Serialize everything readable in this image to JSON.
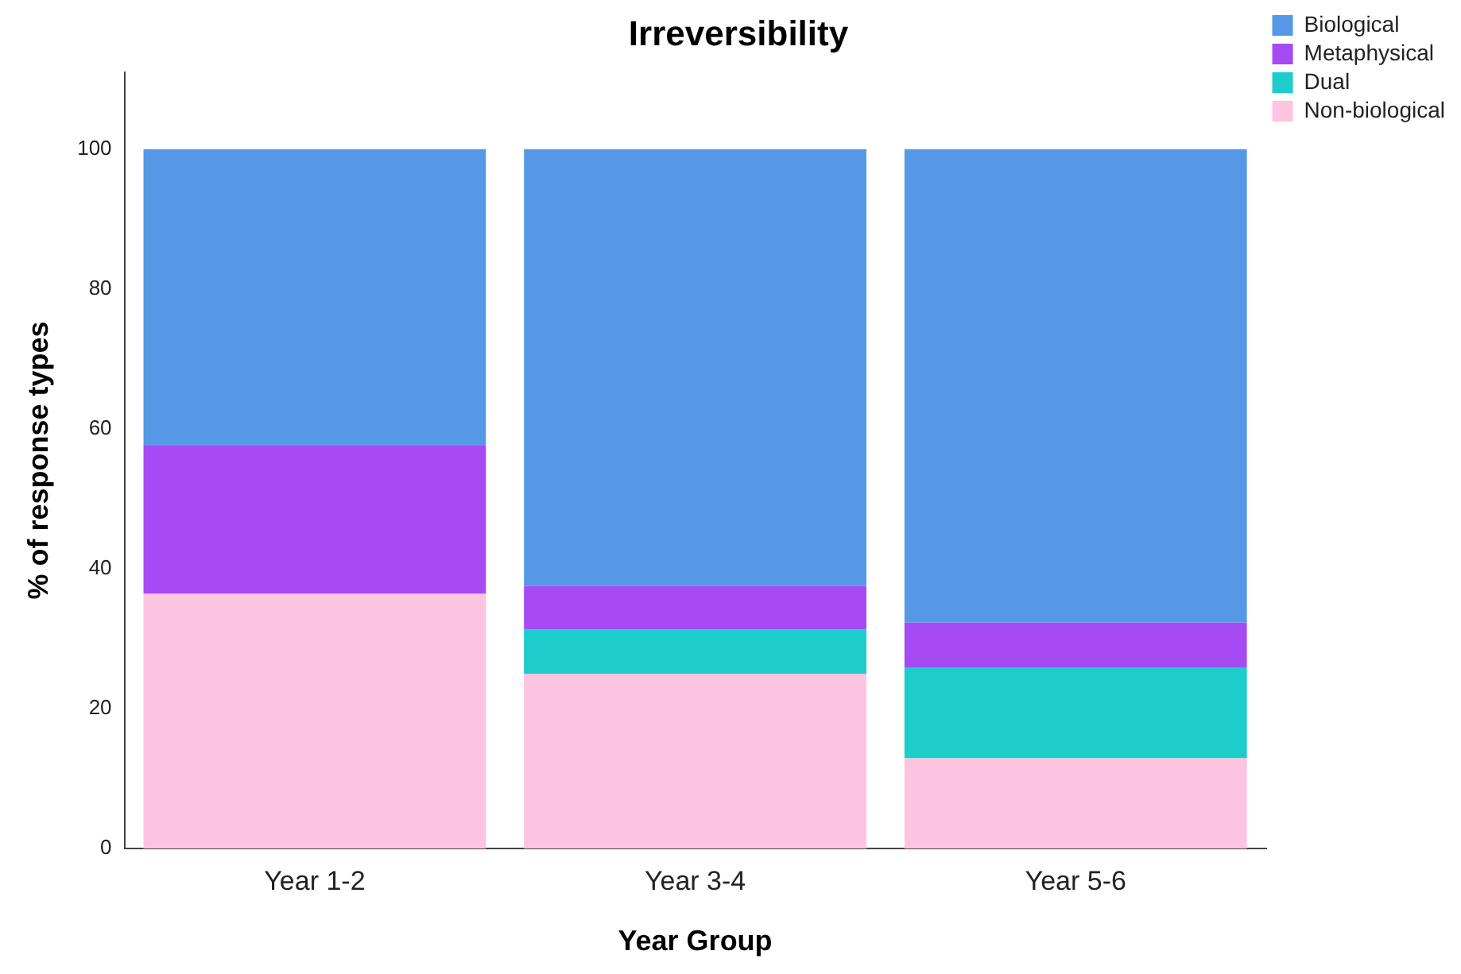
{
  "chart_data": {
    "type": "bar",
    "title": "Irreversibility",
    "xlabel": "Year Group",
    "ylabel": "% of response types",
    "categories": [
      "Year 1-2",
      "Year 3-4",
      "Year 5-6"
    ],
    "stacked": true,
    "series": [
      {
        "name": "Non-biological",
        "color": "#fcc4e0",
        "values": [
          36.4,
          25.0,
          12.9
        ]
      },
      {
        "name": "Dual",
        "color": "#1ccdcb",
        "values": [
          0,
          6.3,
          12.9
        ]
      },
      {
        "name": "Metaphysical",
        "color": "#a64af4",
        "values": [
          21.2,
          6.2,
          6.5
        ]
      },
      {
        "name": "Biological",
        "color": "#5599e6",
        "values": [
          42.4,
          62.5,
          67.7
        ]
      }
    ],
    "ylim": [
      0,
      111
    ],
    "yticks": [
      0,
      20,
      40,
      60,
      80,
      100
    ],
    "grid": false,
    "legend": "top right"
  }
}
